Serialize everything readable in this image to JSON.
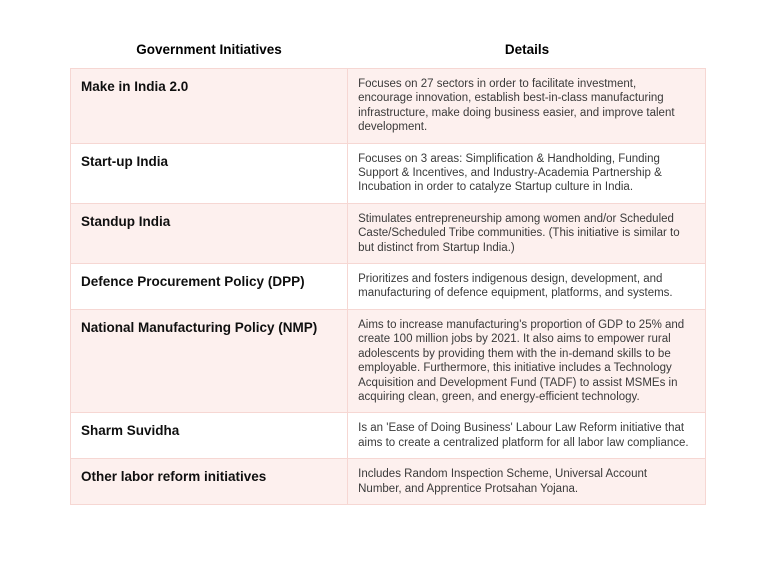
{
  "colors": {
    "row_pink_background": "#fdf0ee",
    "row_white_background": "#ffffff",
    "border_pink": "#f6d7d3",
    "name_text": "#0f0f0f",
    "details_text": "#3a3a3a"
  },
  "table": {
    "headers": [
      {
        "label": "Government Initiatives"
      },
      {
        "label": "Details"
      }
    ],
    "rows": [
      {
        "name": "Make in India 2.0",
        "details": "Focuses on 27 sectors in order to facilitate investment, encourage innovation, establish best-in-class manufacturing infrastructure, make doing business easier, and improve talent development."
      },
      {
        "name": "Start-up India",
        "details": "Focuses on 3 areas: Simplification & Handholding, Funding Support & Incentives, and Industry-Academia Partnership & Incubation in order to catalyze Startup culture in India."
      },
      {
        "name": "Standup India",
        "details": "Stimulates entrepreneurship among women and/or Scheduled Caste/Scheduled Tribe communities. (This initiative is similar to but distinct from Startup India.)"
      },
      {
        "name": "Defence Procurement Policy (DPP)",
        "details": "Prioritizes and fosters indigenous design, development, and manufacturing of defence equipment, platforms, and systems."
      },
      {
        "name": "National Manufacturing Policy (NMP)",
        "details": "Aims to increase manufacturing's proportion of GDP to 25% and create 100 million jobs by 2021. It also aims to empower rural adolescents by providing them with the in-demand skills to be employable. Furthermore, this initiative includes a Technology Acquisition and Development Fund (TADF) to assist MSMEs in acquiring clean, green, and energy-efficient technology."
      },
      {
        "name": "Sharm Suvidha",
        "details": "Is an 'Ease of Doing Business' Labour Law Reform initiative that aims to create a centralized platform for all labor law compliance."
      },
      {
        "name": "Other labor reform initiatives",
        "details": "Includes Random Inspection Scheme, Universal Account Number, and Apprentice Protsahan Yojana."
      }
    ]
  }
}
